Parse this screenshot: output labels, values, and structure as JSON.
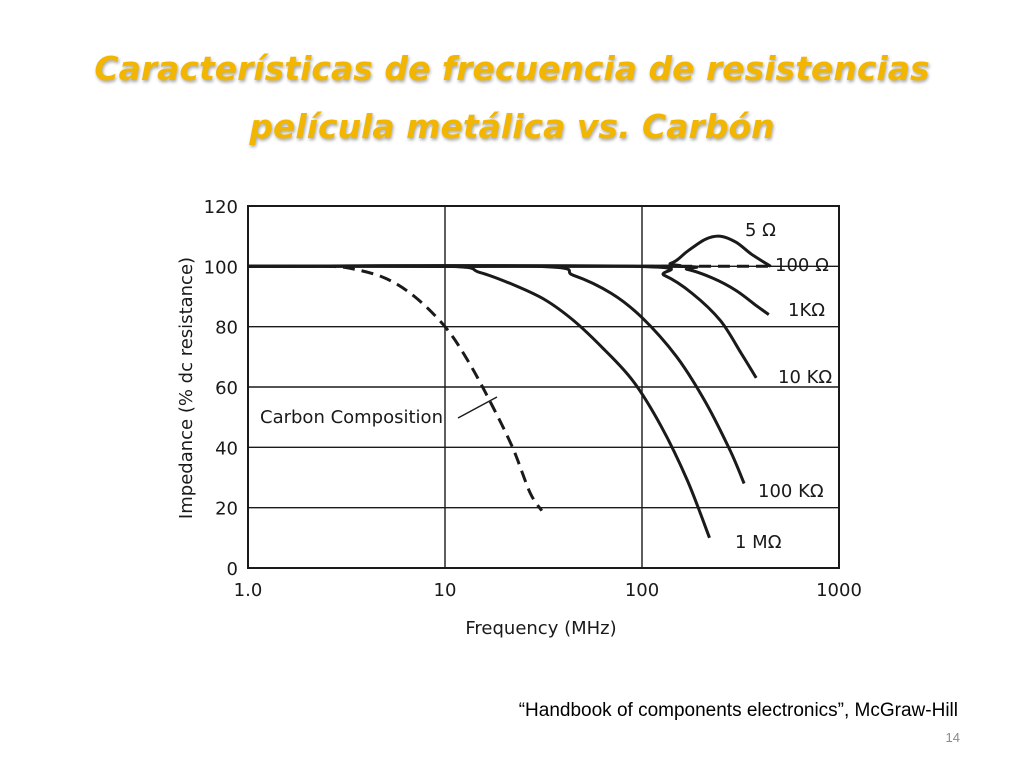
{
  "slide": {
    "title_line1": "Características de frecuencia de resistencias",
    "title_line2": "película metálica vs. Carbón",
    "citation": "“Handbook of components electronics”, McGraw-Hill",
    "page_number": "14",
    "title_color": "#f2b600"
  },
  "chart_data": {
    "type": "line",
    "xlabel": "Frequency (MHz)",
    "ylabel": "Impedance (% dc resistance)",
    "xscale": "log",
    "xlim": [
      1,
      1000
    ],
    "ylim": [
      0,
      120
    ],
    "x_ticks": [
      "1.0",
      "10",
      "100",
      "1000"
    ],
    "y_ticks": [
      "0",
      "20",
      "40",
      "60",
      "80",
      "100",
      "120"
    ],
    "grid": true,
    "series": [
      {
        "name": "Carbon Composition",
        "style": "dashed",
        "x": [
          1,
          2.5,
          3.5,
          5,
          7,
          10,
          13,
          17,
          22,
          27,
          31
        ],
        "y": [
          100,
          100,
          99,
          96,
          90,
          80,
          69,
          55,
          40,
          25,
          19
        ]
      },
      {
        "name": "5 Ω",
        "style": "solid",
        "x": [
          1,
          100,
          140,
          170,
          210,
          250,
          300,
          360,
          450
        ],
        "y": [
          100,
          100,
          101,
          105,
          109,
          110,
          108,
          104,
          100
        ]
      },
      {
        "name": "100 Ω",
        "style": "dashed",
        "x": [
          100,
          200,
          300,
          450
        ],
        "y": [
          100,
          100,
          100,
          100
        ]
      },
      {
        "name": "1KΩ",
        "style": "solid",
        "x": [
          1,
          120,
          170,
          230,
          300,
          380,
          440
        ],
        "y": [
          100,
          100,
          99,
          96,
          92,
          87,
          84
        ]
      },
      {
        "name": "10 KΩ",
        "style": "solid",
        "x": [
          1,
          90,
          130,
          180,
          250,
          320,
          380
        ],
        "y": [
          100,
          100,
          97,
          91,
          82,
          71,
          63
        ]
      },
      {
        "name": "100 KΩ",
        "style": "solid",
        "x": [
          1,
          28,
          45,
          70,
          100,
          150,
          210,
          280,
          330
        ],
        "y": [
          100,
          100,
          97,
          91,
          83,
          70,
          55,
          39,
          28
        ]
      },
      {
        "name": "1 MΩ",
        "style": "solid",
        "x": [
          1,
          10,
          15,
          22,
          32,
          45,
          63,
          90,
          125,
          170,
          220
        ],
        "y": [
          100,
          100,
          98,
          94,
          89,
          82,
          73,
          62,
          47,
          29,
          10
        ]
      }
    ],
    "annotation": "Carbon Composition"
  }
}
